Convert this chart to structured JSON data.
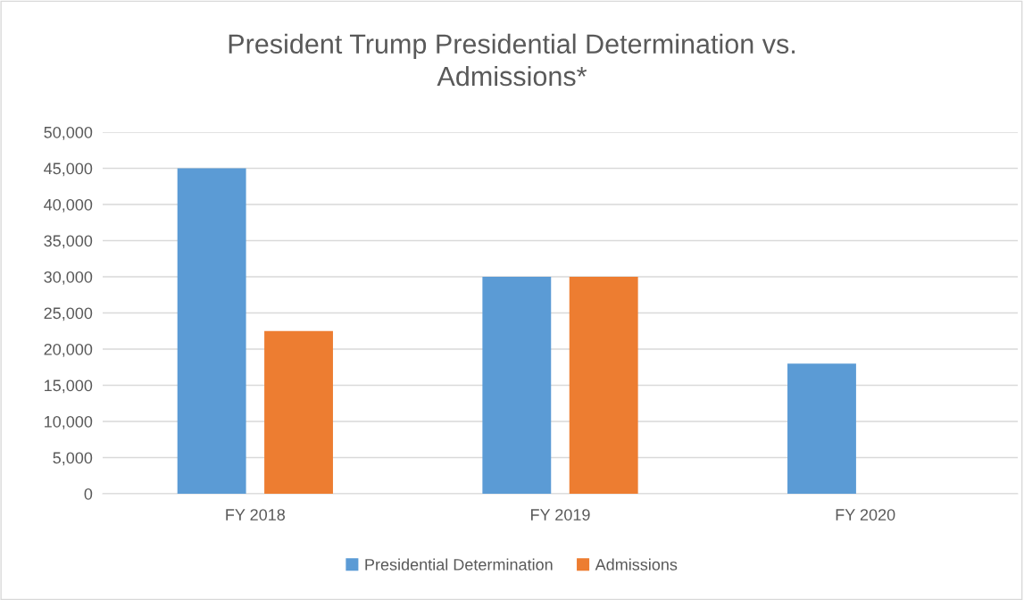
{
  "chart_data": {
    "type": "bar",
    "title": "President Trump Presidential Determination vs.\nAdmissions*",
    "categories": [
      "FY 2018",
      "FY 2019",
      "FY 2020"
    ],
    "series": [
      {
        "name": "Presidential Determination",
        "color": "#5b9bd5",
        "values": [
          45000,
          30000,
          18000
        ]
      },
      {
        "name": "Admissions",
        "color": "#ed7d31",
        "values": [
          22500,
          30000,
          null
        ]
      }
    ],
    "ylim": [
      0,
      50000
    ],
    "yticks": [
      {
        "value": 0,
        "label": "0"
      },
      {
        "value": 5000,
        "label": "5,000"
      },
      {
        "value": 10000,
        "label": "10,000"
      },
      {
        "value": 15000,
        "label": "15,000"
      },
      {
        "value": 20000,
        "label": "20,000"
      },
      {
        "value": 25000,
        "label": "25,000"
      },
      {
        "value": 30000,
        "label": "30,000"
      },
      {
        "value": 35000,
        "label": "35,000"
      },
      {
        "value": 40000,
        "label": "40,000"
      },
      {
        "value": 45000,
        "label": "45,000"
      },
      {
        "value": 50000,
        "label": "50,000"
      }
    ],
    "grid": "y",
    "legend": "bottom"
  }
}
